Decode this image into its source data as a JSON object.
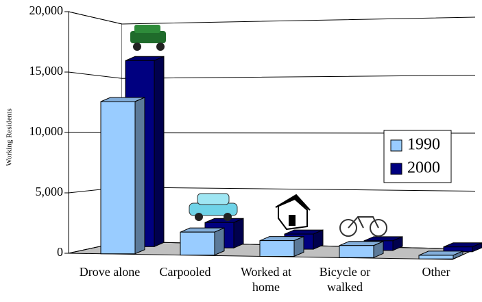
{
  "chart_data": {
    "type": "bar",
    "y_label": "Working Residents",
    "categories": [
      "Drove alone",
      "Carpooled",
      "Worked at\nhome",
      "Bicycle or\nwalked",
      "Other"
    ],
    "series": [
      {
        "name": "1990",
        "color": "#99ccff",
        "values": [
          12600,
          1900,
          1300,
          1000,
          300
        ]
      },
      {
        "name": "2000",
        "color": "#000080",
        "values": [
          15400,
          2100,
          1250,
          800,
          400
        ]
      }
    ],
    "ylim": [
      0,
      20000
    ],
    "yticks": [
      0,
      {
        "value": 5000,
        "label": "5,000"
      },
      {
        "value": 10000,
        "label": "10,000"
      },
      {
        "value": 15000,
        "label": "15,000"
      },
      {
        "value": 20000,
        "label": "20,000"
      }
    ],
    "grid": true,
    "legend": "right"
  }
}
